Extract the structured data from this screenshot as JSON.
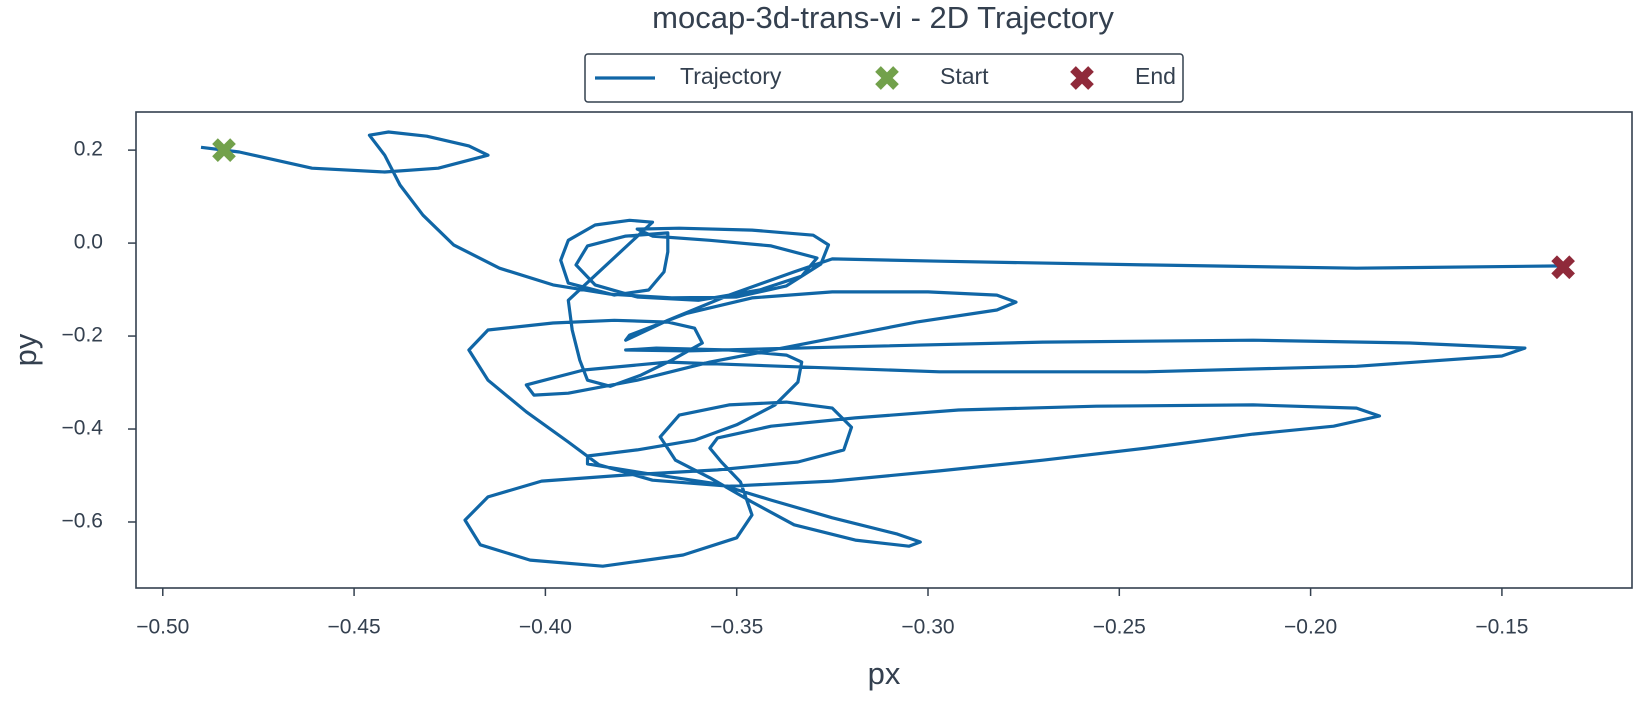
{
  "chart_data": {
    "type": "line",
    "title": "mocap-3d-trans-vi - 2D Trajectory",
    "xlabel": "px",
    "ylabel": "py",
    "legend": "top",
    "xlim": [
      -0.507,
      -0.116
    ],
    "ylim": [
      -0.742,
      0.282
    ],
    "xticks": [
      {
        "value": -0.5,
        "label": "−0.50"
      },
      {
        "value": -0.45,
        "label": "−0.45"
      },
      {
        "value": -0.4,
        "label": "−0.40"
      },
      {
        "value": -0.35,
        "label": "−0.35"
      },
      {
        "value": -0.3,
        "label": "−0.30"
      },
      {
        "value": -0.25,
        "label": "−0.25"
      },
      {
        "value": -0.2,
        "label": "−0.20"
      },
      {
        "value": -0.15,
        "label": "−0.15"
      }
    ],
    "yticks": [
      {
        "value": -0.6,
        "label": "−0.6"
      },
      {
        "value": -0.4,
        "label": "−0.4"
      },
      {
        "value": -0.2,
        "label": "−0.2"
      },
      {
        "value": 0,
        "label": "0.0"
      },
      0.2
    ],
    "series": [
      {
        "name": "Trajectory",
        "color": "#1066a6",
        "x": [
          -0.49,
          -0.48,
          -0.461,
          -0.442,
          -0.428,
          -0.415,
          -0.42,
          -0.431,
          -0.441,
          -0.446,
          -0.442,
          -0.438,
          -0.432,
          -0.424,
          -0.412,
          -0.398,
          -0.383,
          -0.367,
          -0.35,
          -0.337,
          -0.328,
          -0.326,
          -0.33,
          -0.346,
          -0.365,
          -0.376,
          -0.372,
          -0.357,
          -0.341,
          -0.329,
          -0.333,
          -0.344,
          -0.36,
          -0.376,
          -0.387,
          -0.392,
          -0.389,
          -0.379,
          -0.368,
          -0.368,
          -0.369,
          -0.373,
          -0.382,
          -0.394,
          -0.396,
          -0.394,
          -0.387,
          -0.378,
          -0.372,
          -0.394,
          -0.393,
          -0.391,
          -0.389,
          -0.383,
          -0.375,
          -0.367,
          -0.359,
          -0.361,
          -0.368,
          -0.382,
          -0.398,
          -0.415,
          -0.42,
          -0.415,
          -0.405,
          -0.394,
          -0.386,
          -0.372,
          -0.352,
          -0.325,
          -0.297,
          -0.27,
          -0.243,
          -0.215,
          -0.194,
          -0.182,
          -0.188,
          -0.215,
          -0.256,
          -0.292,
          -0.319,
          -0.341,
          -0.355,
          -0.357,
          -0.354,
          -0.349,
          -0.346,
          -0.35,
          -0.364,
          -0.385,
          -0.404,
          -0.417,
          -0.421,
          -0.415,
          -0.401,
          -0.379,
          -0.355,
          -0.334,
          -0.322,
          -0.32,
          -0.325,
          -0.337,
          -0.352,
          -0.365,
          -0.37,
          -0.366,
          -0.357,
          -0.346,
          -0.335,
          -0.319,
          -0.305,
          -0.302,
          -0.308,
          -0.325,
          -0.341,
          -0.355,
          -0.374,
          -0.389,
          -0.389,
          -0.376,
          -0.361,
          -0.35,
          -0.34,
          -0.334,
          -0.333,
          -0.337,
          -0.352,
          -0.371,
          -0.379,
          -0.363,
          -0.325,
          -0.27,
          -0.215,
          -0.174,
          -0.144,
          -0.15,
          -0.188,
          -0.243,
          -0.297,
          -0.338,
          -0.368,
          -0.39,
          -0.405,
          -0.403,
          -0.394,
          -0.376,
          -0.357,
          -0.33,
          -0.303,
          -0.282,
          -0.277,
          -0.282,
          -0.3,
          -0.325,
          -0.346,
          -0.363,
          -0.378,
          -0.379,
          -0.368,
          -0.352,
          -0.335,
          -0.325,
          -0.297,
          -0.243,
          -0.188,
          -0.134
        ],
        "values": [
          0.206,
          0.196,
          0.161,
          0.153,
          0.161,
          0.189,
          0.209,
          0.23,
          0.239,
          0.232,
          0.189,
          0.125,
          0.06,
          -0.004,
          -0.054,
          -0.09,
          -0.11,
          -0.118,
          -0.116,
          -0.092,
          -0.045,
          -0.004,
          0.017,
          0.028,
          0.032,
          0.03,
          0.015,
          0.006,
          -0.006,
          -0.032,
          -0.071,
          -0.101,
          -0.123,
          -0.116,
          -0.09,
          -0.047,
          -0.006,
          0.015,
          0.022,
          -0.019,
          -0.062,
          -0.101,
          -0.112,
          -0.086,
          -0.037,
          0.006,
          0.039,
          0.049,
          0.045,
          -0.123,
          -0.187,
          -0.252,
          -0.295,
          -0.308,
          -0.284,
          -0.252,
          -0.215,
          -0.183,
          -0.17,
          -0.166,
          -0.172,
          -0.187,
          -0.23,
          -0.295,
          -0.363,
          -0.428,
          -0.477,
          -0.51,
          -0.523,
          -0.512,
          -0.49,
          -0.467,
          -0.441,
          -0.411,
          -0.394,
          -0.372,
          -0.355,
          -0.348,
          -0.351,
          -0.359,
          -0.376,
          -0.394,
          -0.419,
          -0.441,
          -0.471,
          -0.514,
          -0.585,
          -0.634,
          -0.671,
          -0.695,
          -0.682,
          -0.649,
          -0.596,
          -0.546,
          -0.512,
          -0.499,
          -0.488,
          -0.471,
          -0.445,
          -0.396,
          -0.355,
          -0.342,
          -0.348,
          -0.37,
          -0.417,
          -0.467,
          -0.505,
          -0.557,
          -0.606,
          -0.639,
          -0.652,
          -0.643,
          -0.626,
          -0.591,
          -0.553,
          -0.518,
          -0.495,
          -0.475,
          -0.458,
          -0.445,
          -0.424,
          -0.391,
          -0.348,
          -0.299,
          -0.256,
          -0.241,
          -0.23,
          -0.226,
          -0.23,
          -0.232,
          -0.224,
          -0.213,
          -0.209,
          -0.215,
          -0.226,
          -0.243,
          -0.265,
          -0.277,
          -0.277,
          -0.265,
          -0.256,
          -0.273,
          -0.305,
          -0.327,
          -0.323,
          -0.295,
          -0.256,
          -0.213,
          -0.17,
          -0.144,
          -0.127,
          -0.112,
          -0.105,
          -0.105,
          -0.118,
          -0.151,
          -0.198,
          -0.209,
          -0.166,
          -0.112,
          -0.062,
          -0.034,
          -0.039,
          -0.047,
          -0.054,
          -0.049
        ]
      },
      {
        "name": "Start",
        "color": "#72a14b",
        "marker": "x",
        "x": [
          -0.484
        ],
        "values": [
          0.2
        ]
      },
      {
        "name": "End",
        "color": "#8f2a3a",
        "marker": "x",
        "x": [
          -0.134
        ],
        "values": [
          -0.052
        ]
      }
    ]
  }
}
